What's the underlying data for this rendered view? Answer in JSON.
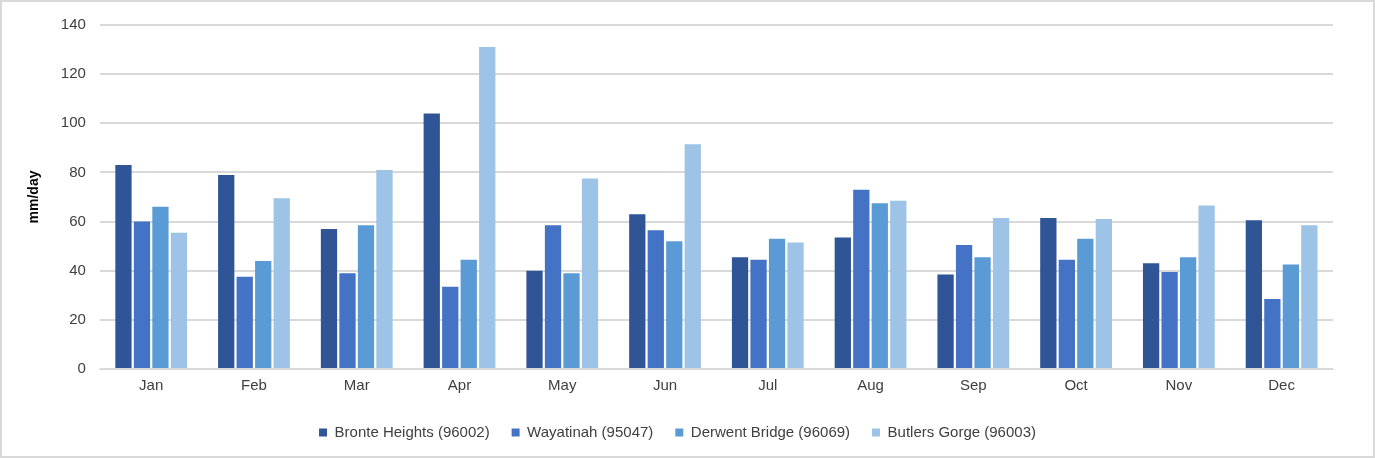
{
  "chart_data": {
    "type": "bar",
    "ylabel": "mm/day",
    "categories": [
      "Jan",
      "Feb",
      "Mar",
      "Apr",
      "May",
      "Jun",
      "Jul",
      "Aug",
      "Sep",
      "Oct",
      "Nov",
      "Dec"
    ],
    "series": [
      {
        "name": "Bronte Heights (96002)",
        "color": "#2f5597",
        "values": [
          83,
          79,
          57,
          104,
          40,
          63,
          45.5,
          53.5,
          38.5,
          61.5,
          43,
          60.5
        ]
      },
      {
        "name": "Wayatinah (95047)",
        "color": "#4472c4",
        "values": [
          60,
          37.5,
          39,
          33.5,
          58.5,
          56.5,
          44.5,
          73,
          50.5,
          44.5,
          39.5,
          28.5
        ]
      },
      {
        "name": "Derwent Bridge (96069)",
        "color": "#5b9bd5",
        "values": [
          66,
          44,
          58.5,
          44.5,
          39,
          52,
          53,
          67.5,
          45.5,
          53,
          45.5,
          42.5
        ]
      },
      {
        "name": "Butlers Gorge (96003)",
        "color": "#9dc3e6",
        "values": [
          55.5,
          69.5,
          81,
          131,
          77.5,
          91.5,
          51.5,
          68.5,
          61.5,
          61,
          66.5,
          58.5
        ]
      }
    ],
    "ylim": [
      0,
      140
    ],
    "yticks": [
      0,
      20,
      40,
      60,
      80,
      100,
      120,
      140
    ],
    "grid": "y",
    "legend": "bottom"
  }
}
